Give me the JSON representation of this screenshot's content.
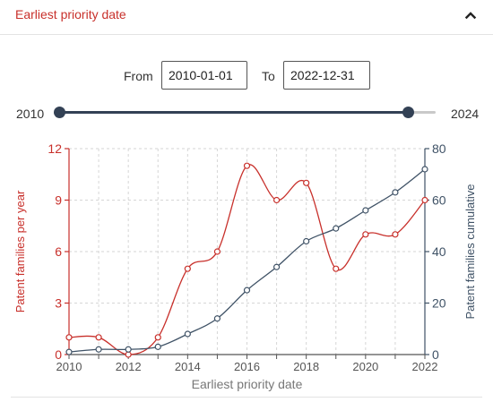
{
  "panel": {
    "title": "Earliest priority date"
  },
  "icons": {
    "collapse": "chevron-up-icon"
  },
  "date_range": {
    "from_label": "From",
    "from_value": "2010-01-01",
    "to_label": "To",
    "to_value": "2022-12-31"
  },
  "slider": {
    "min_label": "2010",
    "max_label": "2024",
    "min": 2010,
    "max": 2024,
    "start": 2010,
    "end": 2022.99
  },
  "colors": {
    "accent_red": "#c8302b",
    "slate": "#3f5266",
    "grid": "#d6d6d6"
  },
  "chart_data": {
    "type": "line",
    "x": [
      2010,
      2011,
      2012,
      2013,
      2014,
      2015,
      2016,
      2017,
      2018,
      2019,
      2020,
      2021,
      2022
    ],
    "xlabel": "Earliest priority date",
    "x_ticks": [
      "2010",
      "2012",
      "2014",
      "2016",
      "2018",
      "2020",
      "2022"
    ],
    "xlim": [
      2010,
      2022
    ],
    "grid": true,
    "series": [
      {
        "name": "Patent families per year",
        "axis": "left",
        "color": "#c8302b",
        "values": [
          1,
          1,
          0,
          1,
          5,
          6,
          11,
          9,
          10,
          5,
          7,
          7,
          9
        ]
      },
      {
        "name": "Patent families cumulative",
        "axis": "right",
        "color": "#3f5266",
        "values": [
          1,
          2,
          2,
          3,
          8,
          14,
          25,
          34,
          44,
          49,
          56,
          63,
          72
        ]
      }
    ],
    "ylabel_left": "Patent families per year",
    "ylim_left": [
      0,
      12
    ],
    "y_ticks_left": [
      "0",
      "3",
      "6",
      "9",
      "12"
    ],
    "ylabel_right": "Patent families cumulative",
    "ylim_right": [
      0,
      80
    ],
    "y_ticks_right": [
      "0",
      "20",
      "40",
      "60",
      "80"
    ]
  }
}
